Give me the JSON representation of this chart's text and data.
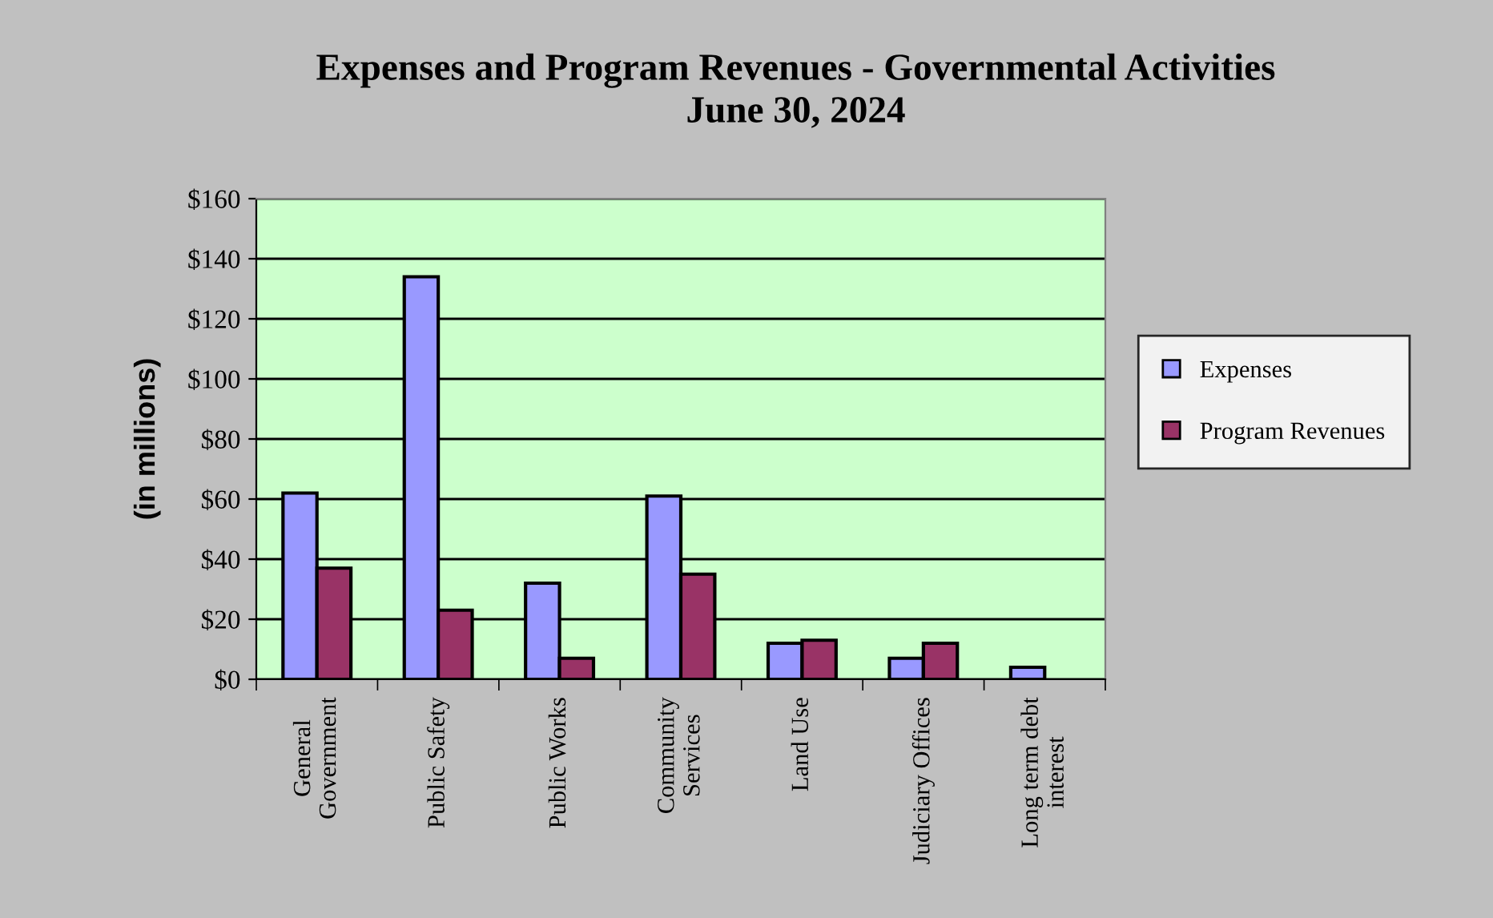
{
  "chart_data": {
    "type": "bar",
    "title": "Expenses and Program Revenues - Governmental Activities\nJune 30, 2024",
    "ylabel": "(in millions)",
    "categories": [
      "General\nGovernment",
      "Public Safety",
      "Public Works",
      "Community\nServices",
      "Land Use",
      "Judiciary Offices",
      "Long term debt\ninterest"
    ],
    "series": [
      {
        "name": "Expenses",
        "color": "#9999ff",
        "values": [
          62,
          134,
          32,
          61,
          12,
          7,
          4
        ]
      },
      {
        "name": "Program Revenues",
        "color": "#993366",
        "values": [
          37,
          23,
          7,
          35,
          13,
          12,
          null
        ]
      }
    ],
    "ylim": [
      0,
      160
    ],
    "yticks": [
      {
        "value": 0,
        "label": "$0"
      },
      {
        "value": 20,
        "label": "$20"
      },
      {
        "value": 40,
        "label": "$40"
      },
      {
        "value": 60,
        "label": "$60"
      },
      {
        "value": 80,
        "label": "$80"
      },
      {
        "value": 100,
        "label": "$100"
      },
      {
        "value": 120,
        "label": "$120"
      },
      {
        "value": 140,
        "label": "$140"
      },
      {
        "value": 160,
        "label": "$160"
      }
    ],
    "grid": "y",
    "legend": "right"
  }
}
